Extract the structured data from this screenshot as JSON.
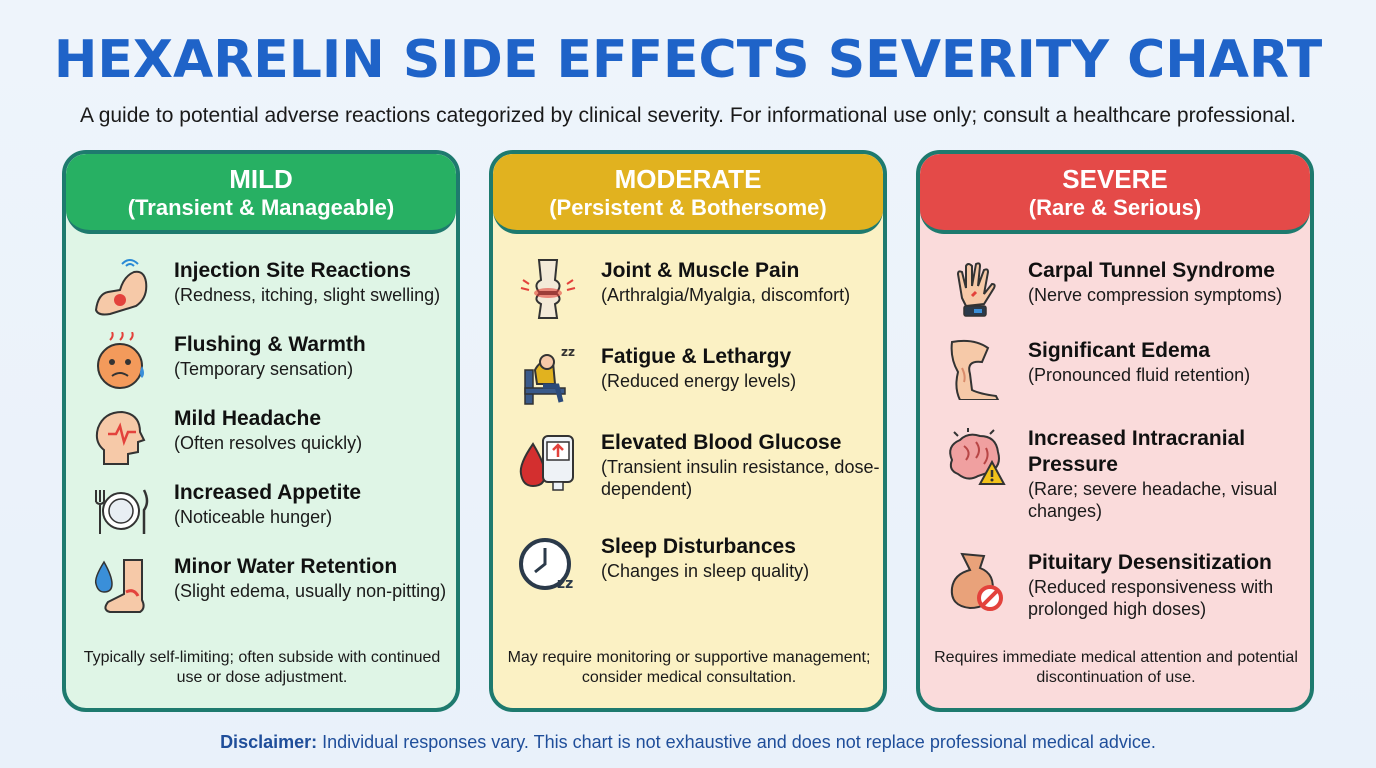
{
  "title": "HEXARELIN SIDE EFFECTS SEVERITY CHART",
  "subtitle": "A guide to potential adverse reactions categorized by clinical severity. For informational use only; consult a healthcare professional.",
  "colors": {
    "title": "#1f63c8",
    "mild": "#27b063",
    "moderate": "#e1b21f",
    "severe": "#e44a48"
  },
  "categories": [
    {
      "heading": "MILD",
      "subheading": "(Transient & Manageable)",
      "items": [
        {
          "icon": "arm-injection-icon",
          "name": "Injection Site Reactions",
          "desc": "(Redness, itching, slight swelling)"
        },
        {
          "icon": "flushed-face-icon",
          "name": "Flushing & Warmth",
          "desc": "(Temporary sensation)"
        },
        {
          "icon": "head-pulse-icon",
          "name": "Mild Headache",
          "desc": "(Often resolves quickly)"
        },
        {
          "icon": "plate-cutlery-icon",
          "name": "Increased Appetite",
          "desc": "(Noticeable hunger)"
        },
        {
          "icon": "water-drop-foot-icon",
          "name": "Minor Water Retention",
          "desc": "(Slight edema, usually non-pitting)"
        }
      ],
      "footer": "Typically self-limiting; often subside with continued use or dose adjustment."
    },
    {
      "heading": "MODERATE",
      "subheading": "(Persistent & Bothersome)",
      "items": [
        {
          "icon": "knee-joint-icon",
          "name": "Joint & Muscle Pain",
          "desc": "(Arthralgia/Myalgia, discomfort)"
        },
        {
          "icon": "tired-person-icon",
          "name": "Fatigue & Lethargy",
          "desc": "(Reduced energy levels)"
        },
        {
          "icon": "glucose-meter-icon",
          "name": "Elevated Blood Glucose",
          "desc": "(Transient insulin resistance, dose-dependent)"
        },
        {
          "icon": "clock-sleep-icon",
          "name": "Sleep Disturbances",
          "desc": "(Changes in sleep quality)"
        }
      ],
      "footer": "May require monitoring or supportive management; consider medical consultation."
    },
    {
      "heading": "SEVERE",
      "subheading": "(Rare & Serious)",
      "items": [
        {
          "icon": "hand-wrist-icon",
          "name": "Carpal Tunnel Syndrome",
          "desc": "(Nerve compression symptoms)"
        },
        {
          "icon": "swollen-leg-icon",
          "name": "Significant Edema",
          "desc": "(Pronounced fluid retention)"
        },
        {
          "icon": "brain-warning-icon",
          "name": "Increased Intracranial Pressure",
          "desc": "(Rare; severe headache, visual changes)"
        },
        {
          "icon": "pituitary-blocked-icon",
          "name": "Pituitary Desensitization",
          "desc": "(Reduced responsiveness with prolonged high doses)"
        }
      ],
      "footer": "Requires immediate medical attention and potential discontinuation of use."
    }
  ],
  "disclaimer": {
    "label": "Disclaimer:",
    "text": "Individual responses vary. This chart is not exhaustive and does not replace professional medical advice."
  }
}
